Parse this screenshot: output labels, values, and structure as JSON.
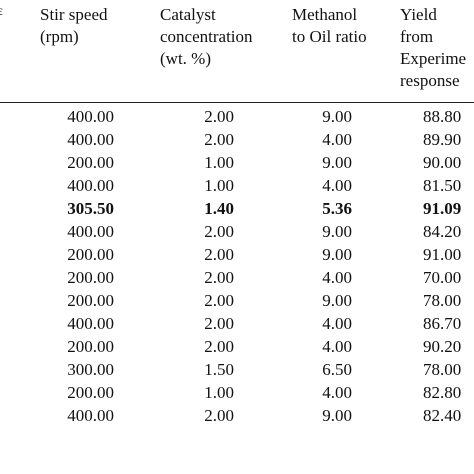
{
  "table": {
    "left_edge_mark": "ε",
    "headers": [
      {
        "lines": [
          "Stir speed",
          "(rpm)"
        ]
      },
      {
        "lines": [
          "Catalyst",
          "concentration",
          "(wt. %)"
        ]
      },
      {
        "lines": [
          "Methanol",
          "to Oil ratio"
        ]
      },
      {
        "lines": [
          "Yield",
          "from",
          "Experime",
          "response"
        ]
      }
    ],
    "rows": [
      {
        "cells": [
          "400.00",
          "2.00",
          "9.00",
          "88.80"
        ],
        "bold": false
      },
      {
        "cells": [
          "400.00",
          "2.00",
          "4.00",
          "89.90"
        ],
        "bold": false
      },
      {
        "cells": [
          "200.00",
          "1.00",
          "9.00",
          "90.00"
        ],
        "bold": false
      },
      {
        "cells": [
          "400.00",
          "1.00",
          "4.00",
          "81.50"
        ],
        "bold": false
      },
      {
        "cells": [
          "305.50",
          "1.40",
          "5.36",
          "91.09"
        ],
        "bold": true
      },
      {
        "cells": [
          "400.00",
          "2.00",
          "9.00",
          "84.20"
        ],
        "bold": false
      },
      {
        "cells": [
          "200.00",
          "2.00",
          "9.00",
          "91.00"
        ],
        "bold": false
      },
      {
        "cells": [
          "200.00",
          "2.00",
          "4.00",
          "70.00"
        ],
        "bold": false
      },
      {
        "cells": [
          "200.00",
          "2.00",
          "9.00",
          "78.00"
        ],
        "bold": false
      },
      {
        "cells": [
          "400.00",
          "2.00",
          "4.00",
          "86.70"
        ],
        "bold": false
      },
      {
        "cells": [
          "200.00",
          "2.00",
          "4.00",
          "90.20"
        ],
        "bold": false
      },
      {
        "cells": [
          "300.00",
          "1.50",
          "6.50",
          "78.00"
        ],
        "bold": false
      },
      {
        "cells": [
          "200.00",
          "1.00",
          "4.00",
          "82.80"
        ],
        "bold": false
      },
      {
        "cells": [
          "400.00",
          "2.00",
          "9.00",
          "82.40"
        ],
        "bold": false
      }
    ]
  }
}
